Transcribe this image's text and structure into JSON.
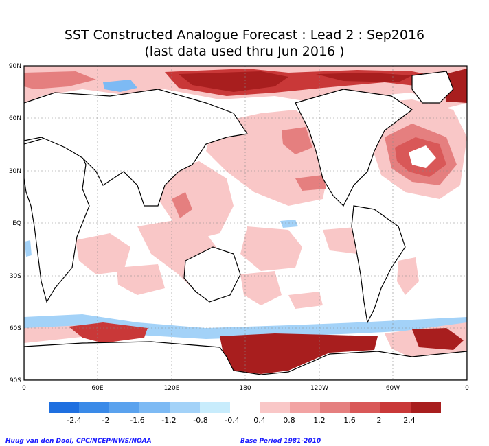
{
  "title": {
    "line1": "SST Constructed Analogue Forecast : Lead 2 : Sep2016",
    "line2": "(last data used thru Jun 2016 )"
  },
  "axes": {
    "lat_labels": [
      "90N",
      "60N",
      "30N",
      "EQ",
      "30S",
      "60S",
      "90S"
    ],
    "lon_labels": [
      "0",
      "60E",
      "120E",
      "180",
      "120W",
      "60W",
      "0"
    ]
  },
  "legend": {
    "neg_labels": [
      "-2.4",
      "-2",
      "-1.6",
      "-1.2",
      "-0.8",
      "-0.4"
    ],
    "pos_labels": [
      "0.4",
      "0.8",
      "1.2",
      "1.6",
      "2",
      "2.4"
    ],
    "neg_colors": [
      "#1e6fe0",
      "#3a8ae8",
      "#5aa2ee",
      "#7dbaf4",
      "#a3d2f8",
      "#c8ecfc"
    ],
    "pos_colors": [
      "#f9c7c7",
      "#f2a3a3",
      "#e57f7f",
      "#d95858",
      "#c93838",
      "#a81e1e"
    ]
  },
  "footer": {
    "credit": "Huug van den Dool, CPC/NCEP/NWS/NOAA",
    "base_period": "Base Period 1981-2010"
  },
  "chart_data": {
    "type": "heatmap",
    "variable": "SST anomaly",
    "lon_range": [
      0,
      360
    ],
    "lat_range": [
      -90,
      90
    ],
    "contour_levels": [
      -2.4,
      -2,
      -1.6,
      -1.2,
      -0.8,
      -0.4,
      0.4,
      0.8,
      1.2,
      1.6,
      2,
      2.4
    ]
  }
}
